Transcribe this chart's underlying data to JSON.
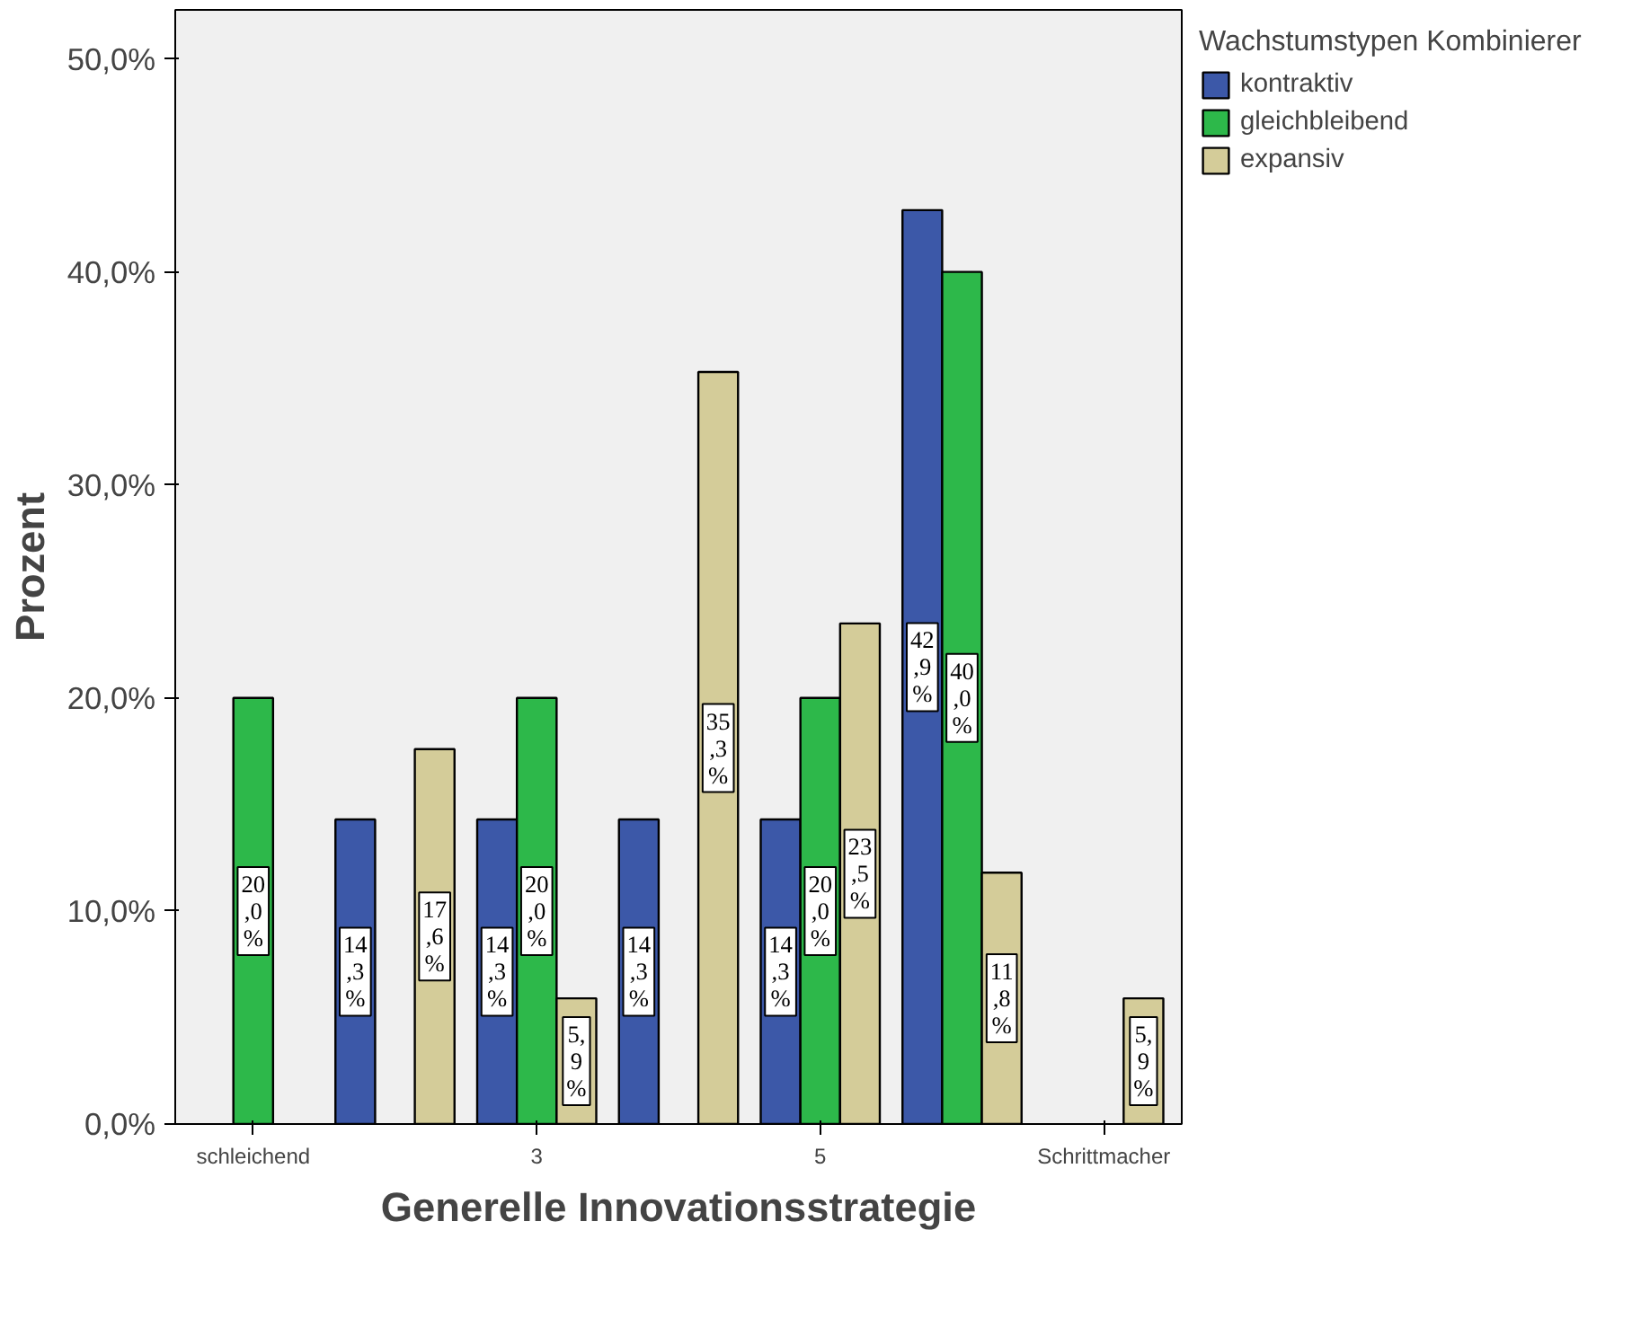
{
  "chart_data": {
    "type": "bar",
    "xlabel": "Generelle Innovationsstrategie",
    "ylabel": "Prozent",
    "legend_title": "Wachstumstypen Kombinierer",
    "legend": "top right",
    "categories": [
      "schleichend",
      null,
      "3",
      null,
      "5",
      null,
      "Schrittmacher"
    ],
    "series": [
      {
        "name": "kontraktiv",
        "color": "#3c58a8",
        "values": [
          0,
          14.3,
          14.3,
          14.3,
          14.3,
          42.9,
          0
        ],
        "value_labels": [
          null,
          "14,3%",
          "14,3%",
          "14,3%",
          "14,3%",
          "42,9%",
          null
        ]
      },
      {
        "name": "gleichbleibend",
        "color": "#2db84a",
        "values": [
          20.0,
          0,
          20.0,
          0,
          20.0,
          40.0,
          0
        ],
        "value_labels": [
          "20,0%",
          null,
          "20,0%",
          null,
          "20,0%",
          "40,0%",
          null
        ]
      },
      {
        "name": "expansiv",
        "color": "#d4cc99",
        "values": [
          0,
          17.6,
          5.9,
          35.3,
          23.5,
          11.8,
          5.9
        ],
        "value_labels": [
          null,
          "17,6%",
          "5,9%",
          "35,3%",
          "23,5%",
          "11,8%",
          "5,9%"
        ]
      }
    ],
    "ylim": [
      0,
      52.3
    ],
    "yticks": [
      {
        "value": 0,
        "label": "0,0%"
      },
      {
        "value": 10,
        "label": "10,0%"
      },
      {
        "value": 20,
        "label": "20,0%"
      },
      {
        "value": 30,
        "label": "30,0%"
      },
      {
        "value": 40,
        "label": "40,0%"
      },
      {
        "value": 50,
        "label": "50,0%"
      }
    ],
    "grid": false
  }
}
